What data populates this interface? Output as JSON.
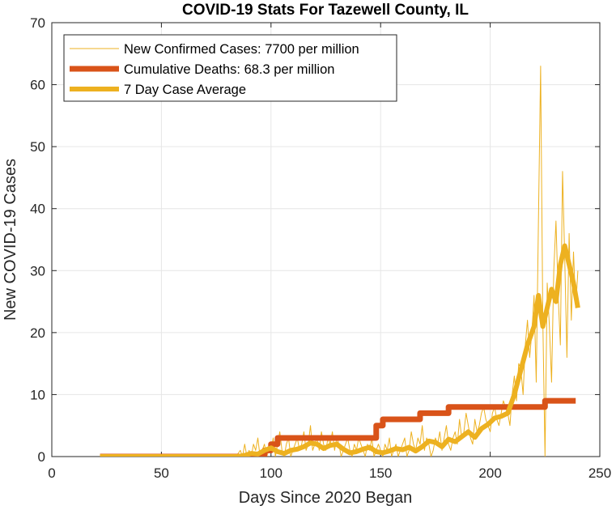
{
  "chart_data": {
    "type": "line",
    "title": "COVID-19 Stats For Tazewell County, IL",
    "xlabel": "Days Since 2020 Began",
    "ylabel": "New COVID-19 Cases",
    "xlim": [
      0,
      250
    ],
    "ylim": [
      0,
      70
    ],
    "xticks": [
      0,
      50,
      100,
      150,
      200,
      250
    ],
    "yticks": [
      0,
      10,
      20,
      30,
      40,
      50,
      60,
      70
    ],
    "xtick_labels": [
      "0",
      "50",
      "100",
      "150",
      "200",
      "250"
    ],
    "ytick_labels": [
      "0",
      "10",
      "20",
      "30",
      "40",
      "50",
      "60",
      "70"
    ],
    "grid": true,
    "legend_position": "top-left",
    "series": [
      {
        "name": "New Confirmed Cases: 7700 per million",
        "color": "#edb120",
        "line": "thin",
        "x": [
          22,
          80,
          84,
          86,
          87,
          88,
          89,
          90,
          91,
          92,
          93,
          94,
          95,
          96,
          97,
          98,
          99,
          100,
          101,
          102,
          103,
          104,
          105,
          106,
          107,
          108,
          109,
          110,
          111,
          112,
          113,
          114,
          115,
          116,
          117,
          118,
          119,
          120,
          121,
          122,
          123,
          124,
          125,
          126,
          127,
          128,
          129,
          130,
          131,
          132,
          133,
          134,
          135,
          136,
          137,
          138,
          139,
          140,
          141,
          142,
          143,
          144,
          145,
          146,
          147,
          148,
          149,
          150,
          151,
          152,
          153,
          154,
          155,
          156,
          157,
          158,
          159,
          160,
          161,
          162,
          163,
          164,
          165,
          166,
          167,
          168,
          169,
          170,
          171,
          172,
          173,
          174,
          175,
          176,
          177,
          178,
          179,
          180,
          181,
          182,
          183,
          184,
          185,
          186,
          187,
          188,
          189,
          190,
          191,
          192,
          193,
          194,
          195,
          196,
          197,
          198,
          199,
          200,
          201,
          202,
          203,
          204,
          205,
          206,
          207,
          208,
          209,
          210,
          211,
          212,
          213,
          214,
          215,
          216,
          217,
          218,
          219,
          220,
          221,
          222,
          223,
          224,
          225,
          226,
          227,
          228,
          229,
          230,
          231,
          232,
          233,
          234,
          235,
          236,
          237,
          238,
          239,
          240
        ],
        "y": [
          0,
          0,
          0,
          1,
          0,
          2,
          0,
          1,
          0,
          2,
          1,
          3,
          0,
          1,
          2,
          0,
          1,
          1,
          3,
          0,
          2,
          4,
          1,
          0,
          2,
          3,
          0,
          1,
          2,
          3,
          1,
          2,
          4,
          1,
          2,
          5,
          1,
          2,
          3,
          1,
          4,
          2,
          1,
          3,
          2,
          4,
          1,
          3,
          2,
          0,
          1,
          2,
          3,
          1,
          0,
          2,
          1,
          3,
          2,
          1,
          0,
          2,
          1,
          3,
          0,
          1,
          2,
          1,
          0,
          2,
          1,
          3,
          0,
          1,
          2,
          0,
          1,
          2,
          3,
          0,
          1,
          4,
          2,
          1,
          3,
          2,
          5,
          1,
          3,
          2,
          0,
          1,
          3,
          2,
          4,
          1,
          3,
          5,
          2,
          1,
          3,
          4,
          2,
          6,
          3,
          4,
          7,
          5,
          3,
          2,
          6,
          4,
          5,
          7,
          8,
          6,
          5,
          4,
          7,
          8,
          6,
          5,
          7,
          9,
          8,
          7,
          5,
          10,
          13,
          9,
          15,
          14,
          10,
          18,
          22,
          16,
          20,
          26,
          12,
          38,
          63,
          22,
          0,
          28,
          21,
          12,
          30,
          38,
          26,
          18,
          46,
          32,
          16,
          36,
          22,
          33,
          24,
          30
        ]
      },
      {
        "name": "Cumulative Deaths: 68.3 per million",
        "color": "#d95319",
        "line": "thick",
        "x": [
          22,
          97,
          97,
          100,
          100,
          103,
          103,
          148,
          148,
          151,
          151,
          157,
          157,
          168,
          168,
          181,
          181,
          225,
          225,
          239
        ],
        "y": [
          0,
          0,
          1,
          1,
          2,
          2,
          3,
          3,
          5,
          5,
          6,
          6,
          6,
          6,
          7,
          7,
          8,
          8,
          9,
          9
        ]
      },
      {
        "name": "7 Day Case Average",
        "color": "#edb120",
        "line": "medium",
        "x": [
          22,
          85,
          88,
          91,
          94,
          97,
          100,
          103,
          106,
          109,
          112,
          115,
          118,
          121,
          124,
          127,
          130,
          133,
          136,
          139,
          142,
          145,
          148,
          151,
          154,
          157,
          160,
          163,
          166,
          169,
          172,
          175,
          178,
          181,
          184,
          187,
          190,
          193,
          196,
          199,
          202,
          205,
          208,
          211,
          214,
          217,
          220,
          222,
          224,
          226,
          228,
          230,
          232,
          234,
          236,
          238,
          240
        ],
        "y": [
          0,
          0,
          0.2,
          0.5,
          0.4,
          1.0,
          1.4,
          0.8,
          0.5,
          1.0,
          1.2,
          1.6,
          2.2,
          2.0,
          1.3,
          1.8,
          2.0,
          1.2,
          0.6,
          0.8,
          1.2,
          1.5,
          0.8,
          0.6,
          0.9,
          1.3,
          1.1,
          1.5,
          0.9,
          1.6,
          2.5,
          2.3,
          1.6,
          2.8,
          2.4,
          3.2,
          4.0,
          3.1,
          4.5,
          5.2,
          6.2,
          6.5,
          7.0,
          10.0,
          14.0,
          18.0,
          21.0,
          26.0,
          21.0,
          24.0,
          27.0,
          25.0,
          31.0,
          34.0,
          31.0,
          28.0,
          24.0
        ]
      }
    ]
  }
}
